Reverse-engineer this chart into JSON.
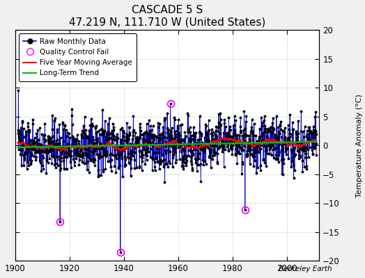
{
  "title": "CASCADE 5 S",
  "subtitle": "47.219 N, 111.710 W (United States)",
  "ylabel": "Temperature Anomaly (°C)",
  "watermark": "Berkeley Earth",
  "xlim": [
    1900,
    2012
  ],
  "ylim": [
    -20,
    20
  ],
  "xticks": [
    1900,
    1920,
    1940,
    1960,
    1980,
    2000
  ],
  "yticks": [
    -20,
    -15,
    -10,
    -5,
    0,
    5,
    10,
    15,
    20
  ],
  "bg_color": "#f0f0f0",
  "plot_bg_color": "#ffffff",
  "raw_color": "#0000cc",
  "dot_color": "#000000",
  "qc_color": "#ff00ff",
  "moving_avg_color": "#ff0000",
  "trend_color": "#00bb00",
  "seed": 137,
  "start_year": 1901,
  "end_year": 2011,
  "qc_fails": [
    {
      "year": 1916.5,
      "value": -13.2
    },
    {
      "year": 1938.8,
      "value": -18.5
    },
    {
      "year": 1957.2,
      "value": 7.2
    },
    {
      "year": 1984.7,
      "value": -11.2
    }
  ]
}
